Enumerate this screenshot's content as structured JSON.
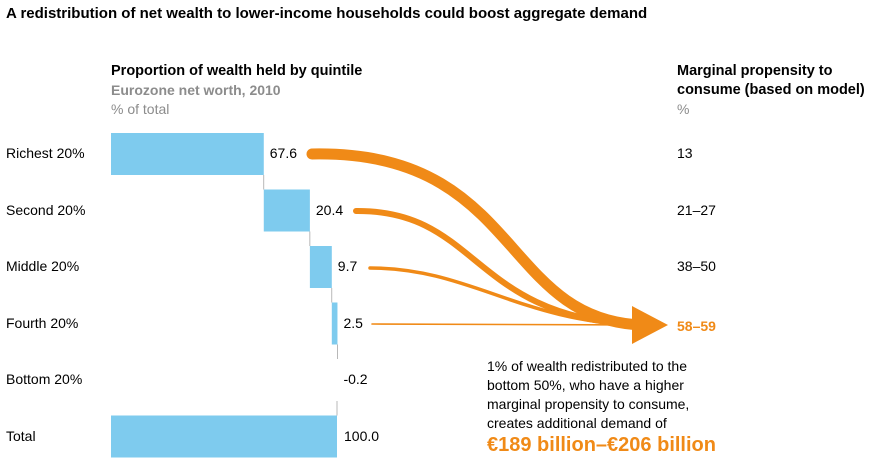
{
  "title": "A redistribution of net wealth to lower-income households could boost aggregate demand",
  "left_header": {
    "title": "Proportion of wealth held by quintile",
    "subtitle": "Eurozone net worth, 2010",
    "unit": "% of total"
  },
  "right_header": {
    "title_line1": "Marginal propensity to",
    "title_line2": "consume (based on model)",
    "unit": "%"
  },
  "chart_data": {
    "type": "bar",
    "title": "Proportion of wealth held by quintile",
    "subtitle": "Eurozone net worth, 2010",
    "ylabel": "% of total",
    "orientation": "horizontal-waterfall",
    "categories": [
      "Richest 20%",
      "Second 20%",
      "Middle 20%",
      "Fourth 20%",
      "Bottom 20%",
      "Total"
    ],
    "values": [
      67.6,
      20.4,
      9.7,
      2.5,
      -0.2,
      100.0
    ],
    "value_labels": [
      "67.6",
      "20.4",
      "9.7",
      "2.5",
      "-0.2",
      "100.0"
    ],
    "marginal_propensity_to_consume": [
      "13",
      "21–27",
      "38–50",
      "",
      "",
      ""
    ],
    "arrow_target_label": "58–59",
    "colors": {
      "bar": "#7ecbee",
      "arrow": "#f08a17"
    }
  },
  "annotation": {
    "lines": [
      "1% of wealth redistributed to the",
      "bottom 50%, who have a higher",
      "marginal propensity to consume,",
      "creates additional demand of"
    ],
    "highlight": "€189 billion–€206 billion"
  }
}
